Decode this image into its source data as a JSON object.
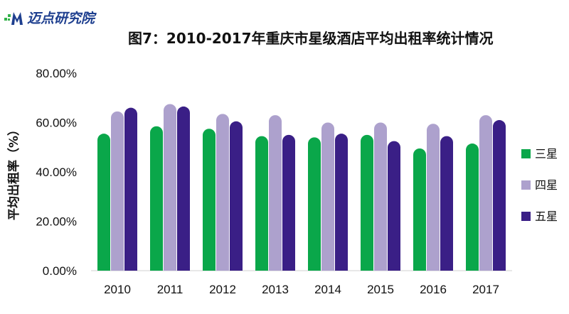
{
  "logo": {
    "text": "迈点研究院",
    "mark": "M"
  },
  "chart_data": {
    "type": "bar",
    "title": "图7：2010-2017年重庆市星级酒店平均出租率统计情况",
    "ylabel": "平均出租率（%）",
    "xlabel": "",
    "ylim": [
      0,
      80
    ],
    "y_ticks": [
      "0.00%",
      "20.00%",
      "40.00%",
      "60.00%",
      "80.00%"
    ],
    "categories": [
      "2010",
      "2011",
      "2012",
      "2013",
      "2014",
      "2015",
      "2016",
      "2017"
    ],
    "series": [
      {
        "name": "三星",
        "color": "#0aa74a",
        "values": [
          55.5,
          58.5,
          57.5,
          54.5,
          54.0,
          55.0,
          49.5,
          51.5
        ]
      },
      {
        "name": "四星",
        "color": "#ada1cd",
        "values": [
          64.5,
          67.5,
          63.5,
          63.0,
          60.0,
          60.0,
          59.5,
          63.0
        ]
      },
      {
        "name": "五星",
        "color": "#3a1f86",
        "values": [
          66.0,
          66.5,
          60.5,
          55.0,
          55.5,
          52.5,
          54.5,
          61.0
        ]
      }
    ],
    "legend_position": "right",
    "grid": false
  }
}
